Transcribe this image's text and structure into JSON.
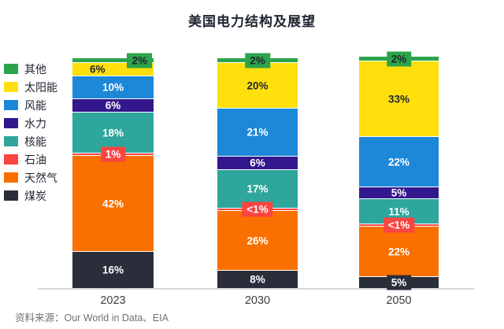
{
  "header": {
    "title": "美国电力结构及展望"
  },
  "footer": {
    "source": "资料来源：Our World in Data、EIA"
  },
  "chart_data": {
    "type": "bar",
    "stacked": true,
    "title": "美国电力结构及展望",
    "categories": [
      "2023",
      "2030",
      "2050"
    ],
    "unit": "%",
    "ylim": [
      0,
      101
    ],
    "grid": false,
    "legend_position": "left",
    "legend_order": [
      "其他",
      "太阳能",
      "风能",
      "水力",
      "核能",
      "石油",
      "天然气",
      "煤炭"
    ],
    "series": [
      {
        "name": "煤炭",
        "color": "#2A2D3A",
        "values": [
          16,
          8,
          5
        ],
        "labels": [
          "16%",
          "8%",
          "5%"
        ],
        "label_styles": [
          "white",
          "white",
          "badge white"
        ]
      },
      {
        "name": "天然气",
        "color": "#F97000",
        "values": [
          42,
          26,
          22
        ],
        "labels": [
          "42%",
          "26%",
          "22%"
        ],
        "label_styles": [
          "white",
          "white",
          "white"
        ]
      },
      {
        "name": "石油",
        "color": "#FA4540",
        "values": [
          1,
          0.5,
          0.5
        ],
        "labels": [
          "1%",
          "<1%",
          "<1%"
        ],
        "label_styles": [
          "badge white",
          "badge white",
          "badge white"
        ]
      },
      {
        "name": "核能",
        "color": "#2FA69C",
        "values": [
          18,
          17,
          11
        ],
        "labels": [
          "18%",
          "17%",
          "11%"
        ],
        "label_styles": [
          "white",
          "white",
          "white"
        ]
      },
      {
        "name": "水力",
        "color": "#32188C",
        "values": [
          6,
          6,
          5
        ],
        "labels": [
          "6%",
          "6%",
          "5%"
        ],
        "label_styles": [
          "white",
          "white",
          "white"
        ]
      },
      {
        "name": "风能",
        "color": "#1E88D8",
        "values": [
          10,
          21,
          22
        ],
        "labels": [
          "10%",
          "21%",
          "22%"
        ],
        "label_styles": [
          "white",
          "white",
          "white"
        ]
      },
      {
        "name": "太阳能",
        "color": "#FFE00C",
        "values": [
          6,
          20,
          33
        ],
        "labels": [
          "6%",
          "20%",
          "33%"
        ],
        "label_styles": [
          "dark left",
          "dark",
          "dark"
        ]
      },
      {
        "name": "其他",
        "color": "#2CA44B",
        "values": [
          2,
          2,
          2
        ],
        "labels": [
          "2%",
          "2%",
          "2%"
        ],
        "label_styles": [
          "badge dark right",
          "badge dark",
          "badge dark"
        ]
      }
    ],
    "source": "资料来源：Our World in Data、EIA"
  }
}
